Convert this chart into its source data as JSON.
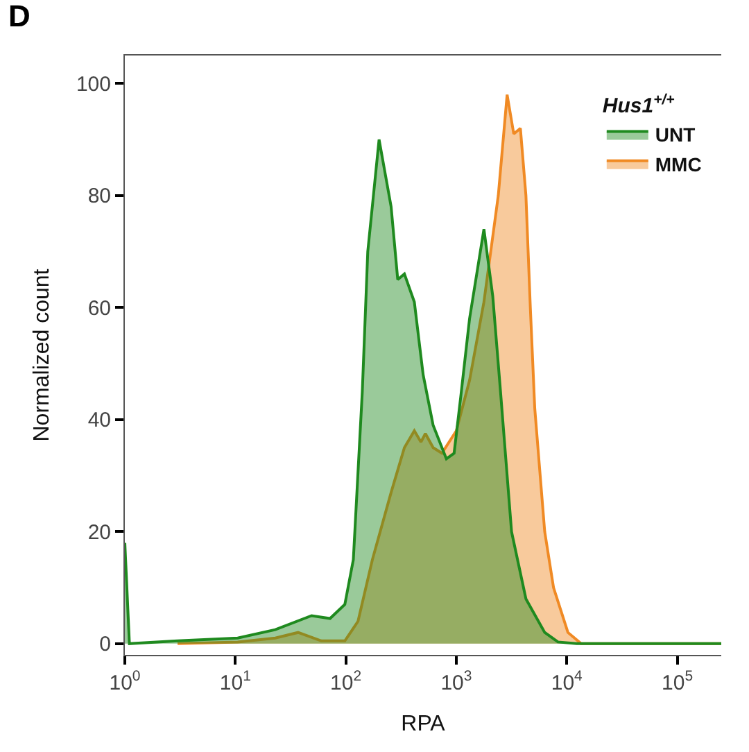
{
  "chart_data": {
    "type": "area",
    "xlabel": "RPA",
    "ylabel": "Normalized count",
    "legend_title": "Hus1$^{+/+}$",
    "annotations": [
      "D"
    ],
    "log": "x",
    "xlim": [
      1,
      250000
    ],
    "ylim": [
      -2,
      105
    ],
    "xticks": [
      {
        "value": 1,
        "label": "10$^{0}$"
      },
      {
        "value": 10,
        "label": "10$^{1}$"
      },
      {
        "value": 100,
        "label": "10$^{2}$"
      },
      {
        "value": 1000,
        "label": "10$^{3}$"
      },
      {
        "value": 10000,
        "label": "10$^{4}$"
      },
      {
        "value": 100000,
        "label": "10$^{5}$"
      }
    ],
    "yticks": [
      0,
      20,
      40,
      60,
      80,
      100
    ],
    "legend": "top right",
    "marker": "none",
    "line_style": "solid",
    "series": [
      {
        "name": "UNT",
        "color": "#1f8a1f",
        "x": [
          1,
          1.1,
          3,
          10.5,
          23,
          49,
          72,
          98,
          117,
          141,
          158,
          200,
          257,
          295,
          339,
          417,
          501,
          617,
          813,
          955,
          1096,
          1318,
          1778,
          2138,
          2512,
          3162,
          4266,
          6310,
          8318,
          12303,
          250000
        ],
        "values": [
          18,
          0,
          0.5,
          1,
          2.5,
          5,
          4.5,
          7,
          15,
          45,
          70,
          90,
          78,
          65,
          66,
          61,
          48,
          39,
          33,
          34,
          44,
          58,
          74,
          62,
          45,
          20,
          8,
          2,
          0.3,
          0,
          0
        ]
      },
      {
        "name": "MMC",
        "color": "#f08a24",
        "x": [
          3,
          10.5,
          23,
          37,
          60,
          98,
          129,
          174,
          257,
          339,
          417,
          479,
          525,
          617,
          741,
          1000,
          1318,
          1778,
          2399,
          2884,
          3311,
          3802,
          4266,
          4677,
          5129,
          6310,
          7586,
          10233,
          13490,
          250000
        ],
        "values": [
          0,
          0.3,
          1,
          2,
          0.5,
          0.5,
          4,
          15,
          27,
          35,
          38,
          36,
          37.5,
          35,
          34,
          38,
          47,
          61,
          80,
          98,
          91,
          92,
          80,
          60,
          42,
          20,
          10,
          2,
          0,
          0
        ]
      }
    ]
  }
}
